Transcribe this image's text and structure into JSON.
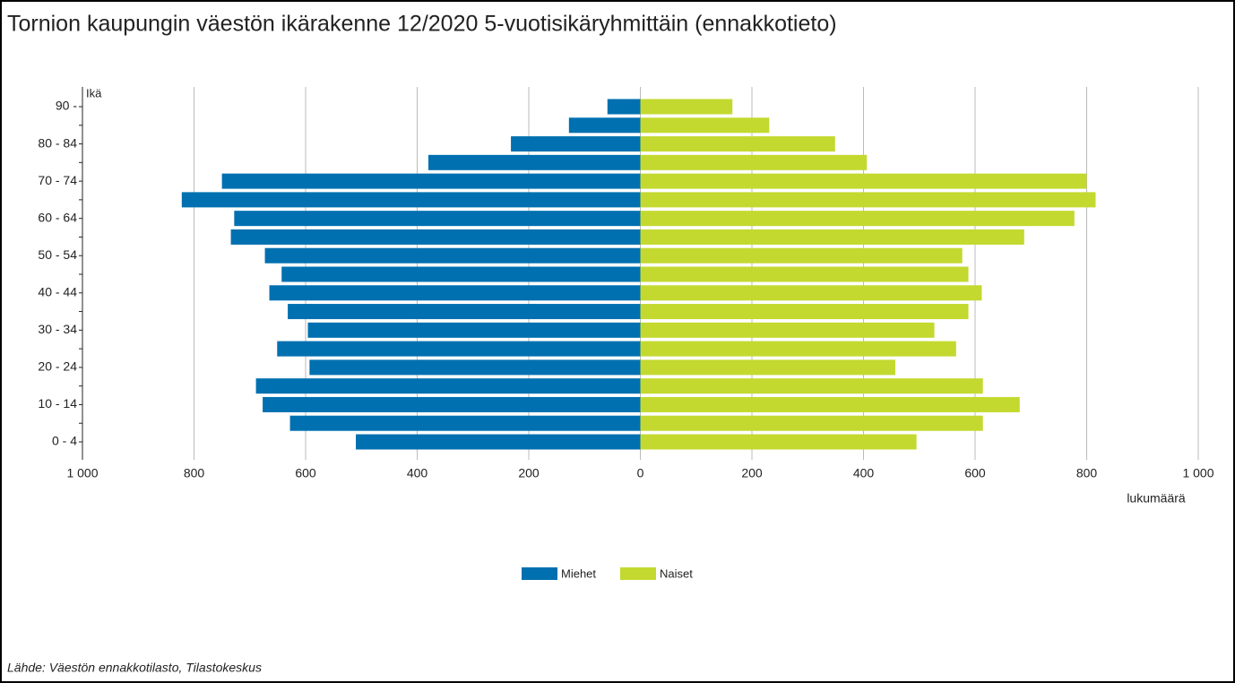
{
  "chart_data": {
    "type": "pyramid",
    "title": "Tornion kaupungin väestön ikärakenne 12/2020 5-vuotisikäryhmittäin (ennakkotieto)",
    "y_label": "Ikä",
    "x_label": "lukumäärä",
    "source": "Lähde: Väestön ennakkotilasto, Tilastokeskus",
    "categories": [
      "0 - 4",
      null,
      "10 - 14",
      null,
      "20 - 24",
      null,
      "30 - 34",
      null,
      "40 - 44",
      null,
      "50 - 54",
      null,
      "60 - 64",
      null,
      "70 - 74",
      null,
      "80 - 84",
      null,
      "90 -"
    ],
    "series": [
      {
        "name": "Miehet",
        "color": "#0070b0",
        "values": [
          -510,
          -628,
          -677,
          -689,
          -593,
          -651,
          -596,
          -632,
          -665,
          -643,
          -673,
          -734,
          -728,
          -822,
          -750,
          -380,
          -232,
          -128,
          -59
        ]
      },
      {
        "name": "Naiset",
        "color": "#c3d92f",
        "values": [
          495,
          614,
          680,
          614,
          457,
          566,
          527,
          588,
          612,
          588,
          577,
          688,
          778,
          816,
          800,
          406,
          349,
          231,
          165
        ]
      }
    ],
    "xlim": [
      -1000,
      1000
    ],
    "xticks": [
      {
        "value": -1000,
        "label": "1 000"
      },
      {
        "value": -800,
        "label": "800"
      },
      {
        "value": -600,
        "label": "600"
      },
      {
        "value": -400,
        "label": "400"
      },
      {
        "value": -200,
        "label": "200"
      },
      0,
      200,
      400,
      600,
      800,
      {
        "value": 1000,
        "label": "1 000"
      }
    ],
    "grid": true,
    "legend": "bottom"
  }
}
